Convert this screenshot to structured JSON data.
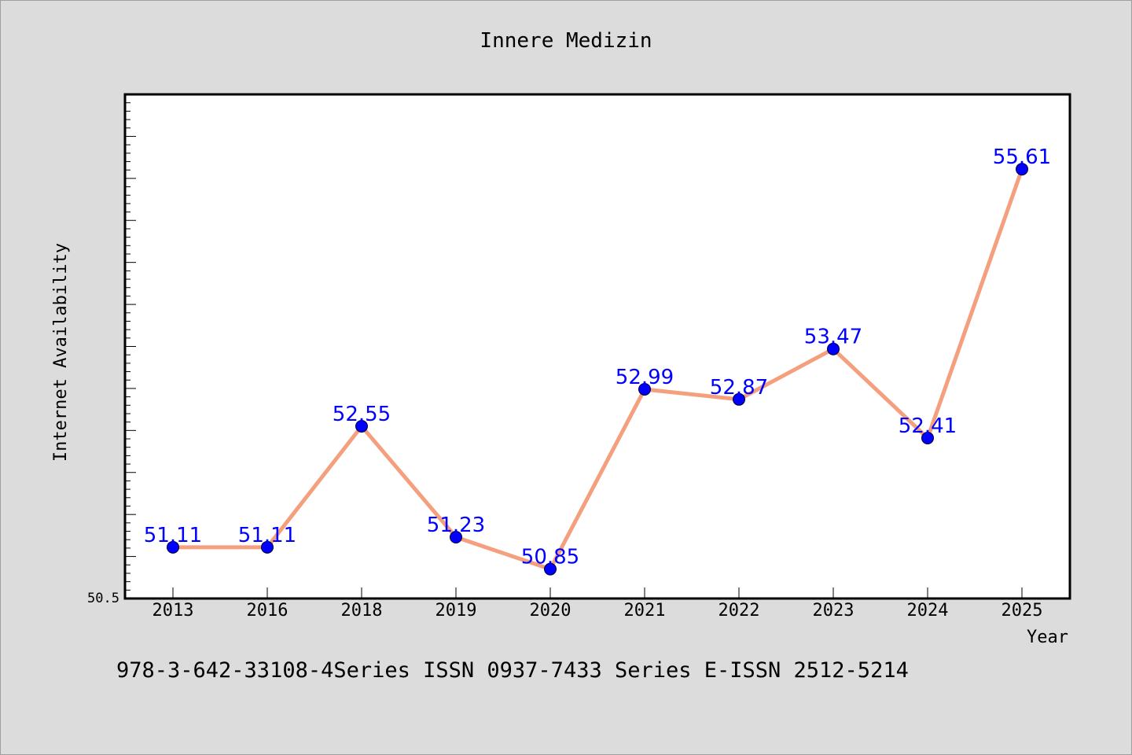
{
  "chart_data": {
    "type": "line",
    "title": "Innere Medizin",
    "xlabel": "Year",
    "ylabel": "Internet Availability",
    "categories": [
      "2013",
      "2016",
      "2018",
      "2019",
      "2020",
      "2021",
      "2022",
      "2023",
      "2024",
      "2025"
    ],
    "series": [
      {
        "values": [
          51.11,
          51.11,
          52.55,
          51.23,
          50.85,
          52.99,
          52.87,
          53.47,
          52.41,
          55.61
        ],
        "data_labels": [
          "51.11",
          "51.11",
          "52.55",
          "51.23",
          "50.85",
          "52.99",
          "52.87",
          "53.47",
          "52.41",
          "55.61"
        ]
      }
    ],
    "ylim": [
      50.5,
      56.5
    ],
    "ytick_labels": [
      "50.5"
    ],
    "grid": false,
    "colors": {
      "line": "#f4a07e",
      "marker": "#0000ff",
      "label": "#0000ff",
      "background": "#dcdcdc",
      "plot_background": "#ffffff"
    }
  },
  "footnote": "978-3-642-33108-4Series ISSN 0937-7433 Series E-ISSN 2512-5214"
}
